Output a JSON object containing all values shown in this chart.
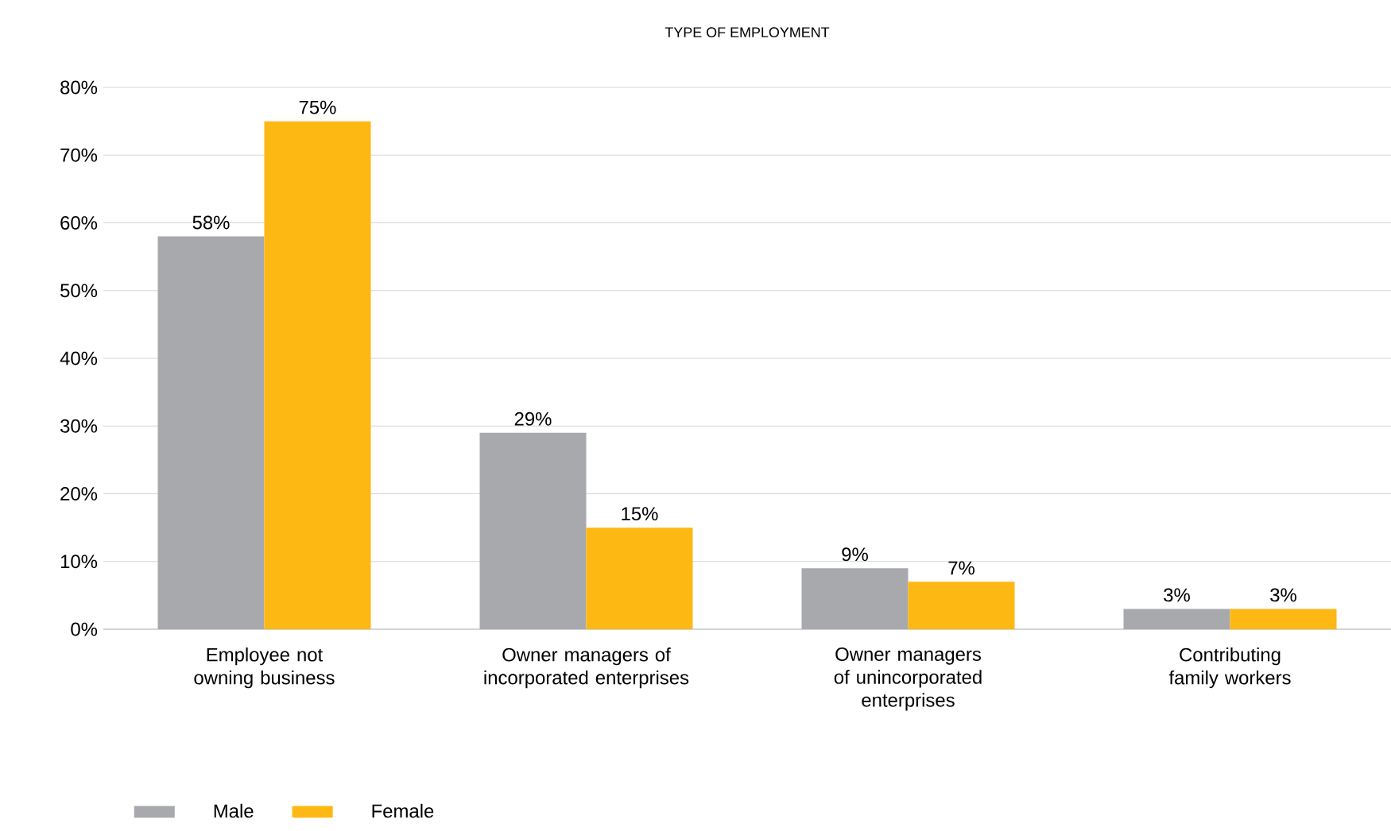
{
  "chart_data": {
    "type": "bar",
    "title": "TYPE OF EMPLOYMENT",
    "categories": [
      "Employee not owning business",
      "Owner managers of incorporated enterprises",
      "Owner managers of unincorporated enterprises",
      "Contributing family workers"
    ],
    "series": [
      {
        "name": "Male",
        "color": "#a7a9ac",
        "values": [
          58,
          29,
          9,
          3
        ],
        "value_labels": [
          "58%",
          "29%",
          "9%",
          "3%"
        ]
      },
      {
        "name": "Female",
        "color": "#fdb813",
        "values": [
          75,
          15,
          7,
          3
        ],
        "value_labels": [
          "75%",
          "15%",
          "7%",
          "3%"
        ]
      }
    ],
    "ylim": [
      0,
      80
    ],
    "yticks": [
      {
        "value": 0,
        "label": "0%"
      },
      {
        "value": 10,
        "label": "10%"
      },
      {
        "value": 20,
        "label": "20%"
      },
      {
        "value": 30,
        "label": "30%"
      },
      {
        "value": 40,
        "label": "40%"
      },
      {
        "value": 50,
        "label": "50%"
      },
      {
        "value": 60,
        "label": "60%"
      },
      {
        "value": 70,
        "label": "70%"
      },
      {
        "value": 80,
        "label": "80%"
      }
    ],
    "grid": "y",
    "legend": "bottom left"
  }
}
